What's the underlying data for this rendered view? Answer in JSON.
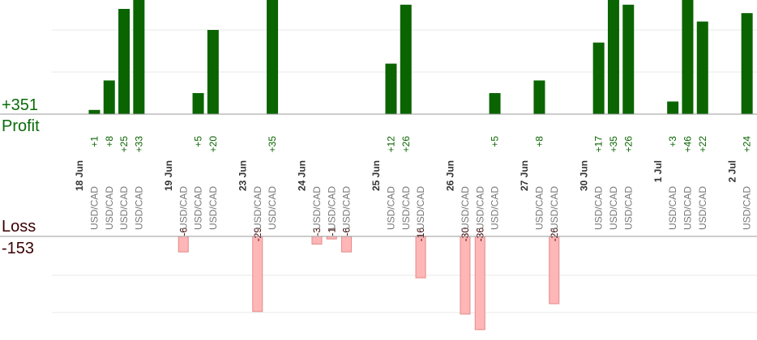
{
  "profit": {
    "total": "+351",
    "label": "Profit"
  },
  "loss": {
    "total": "-153",
    "label": "Loss"
  },
  "colors": {
    "profit": "#0a6400",
    "loss": "#ffb6b6",
    "loss_stroke": "#e48a8a",
    "grid": "#e8e8e8",
    "axis": "#999999",
    "tick": "#777777",
    "date": "#333333"
  },
  "chart_data": {
    "type": "bar",
    "title": "",
    "xlabel": "",
    "ylabel": "",
    "groups": [
      {
        "date": "18 Jun",
        "trades": [
          {
            "pair": "USD/CAD",
            "value": 1,
            "label": "+1"
          },
          {
            "pair": "USD/CAD",
            "value": 8,
            "label": "+8"
          },
          {
            "pair": "USD/CAD",
            "value": 25,
            "label": "+25"
          },
          {
            "pair": "USD/CAD",
            "value": 33,
            "label": "+33"
          }
        ]
      },
      {
        "date": "19 Jun",
        "trades": [
          {
            "pair": "USD/CAD",
            "value": -6,
            "label": "-6"
          },
          {
            "pair": "USD/CAD",
            "value": 5,
            "label": "+5"
          },
          {
            "pair": "USD/CAD",
            "value": 20,
            "label": "+20"
          }
        ]
      },
      {
        "date": "23 Jun",
        "trades": [
          {
            "pair": "USD/CAD",
            "value": -29,
            "label": "-29"
          },
          {
            "pair": "USD/CAD",
            "value": 35,
            "label": "+35"
          }
        ]
      },
      {
        "date": "24 Jun",
        "trades": [
          {
            "pair": "USD/CAD",
            "value": -3,
            "label": "-3"
          },
          {
            "pair": "USD/CAD",
            "value": -1,
            "label": "-1"
          },
          {
            "pair": "USD/CAD",
            "value": -6,
            "label": "-6"
          }
        ]
      },
      {
        "date": "25 Jun",
        "trades": [
          {
            "pair": "USD/CAD",
            "value": 12,
            "label": "+12"
          },
          {
            "pair": "USD/CAD",
            "value": 26,
            "label": "+26"
          },
          {
            "pair": "USD/CAD",
            "value": -16,
            "label": "-16"
          }
        ]
      },
      {
        "date": "26 Jun",
        "trades": [
          {
            "pair": "USD/CAD",
            "value": -30,
            "label": "-30"
          },
          {
            "pair": "USD/CAD",
            "value": -36,
            "label": "-36"
          },
          {
            "pair": "USD/CAD",
            "value": 5,
            "label": "+5"
          }
        ]
      },
      {
        "date": "27 Jun",
        "trades": [
          {
            "pair": "USD/CAD",
            "value": 8,
            "label": "+8"
          },
          {
            "pair": "USD/CAD",
            "value": -26,
            "label": "-26"
          }
        ]
      },
      {
        "date": "30 Jun",
        "trades": [
          {
            "pair": "USD/CAD",
            "value": 17,
            "label": "+17"
          },
          {
            "pair": "USD/CAD",
            "value": 35,
            "label": "+35"
          },
          {
            "pair": "USD/CAD",
            "value": 26,
            "label": "+26"
          }
        ]
      },
      {
        "date": "1 Jul",
        "trades": [
          {
            "pair": "USD/CAD",
            "value": 3,
            "label": "+3"
          },
          {
            "pair": "USD/CAD",
            "value": 46,
            "label": "+46"
          },
          {
            "pair": "USD/CAD",
            "value": 22,
            "label": "+22"
          }
        ]
      },
      {
        "date": "2 Jul",
        "trades": [
          {
            "pair": "USD/CAD",
            "value": 24,
            "label": "+24"
          }
        ]
      }
    ]
  }
}
